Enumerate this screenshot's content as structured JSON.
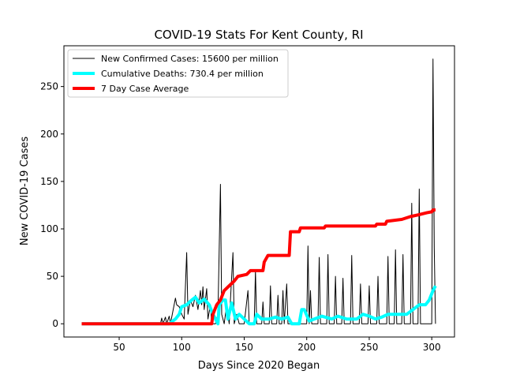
{
  "chart_data": {
    "type": "line",
    "title": "COVID-19 Stats For Kent County, RI",
    "x_label": "Days Since 2020 Began",
    "y_label": "New COVID-19 Cases",
    "xlim": [
      5.8,
      318.2
    ],
    "ylim": [
      -13.95,
      292.95
    ],
    "xticks": [
      50,
      100,
      150,
      200,
      250,
      300
    ],
    "yticks": [
      0,
      50,
      100,
      150,
      200,
      250
    ],
    "legend": "upper left",
    "series": [
      {
        "name": "New Confirmed Cases: 15600 per million",
        "color": "#000000",
        "width": 1,
        "x": [
          20,
          83,
          84,
          85,
          87,
          88,
          90,
          91,
          95,
          96,
          98,
          100,
          102,
          104,
          105,
          107,
          109,
          111,
          113,
          115,
          116,
          117,
          118,
          120,
          121,
          123,
          124,
          127,
          129,
          131,
          132,
          134,
          136,
          138,
          141,
          142,
          144,
          146,
          150,
          153,
          154,
          158,
          159,
          160,
          164,
          165,
          166,
          170,
          171,
          172,
          176,
          177,
          178,
          180,
          181,
          182,
          184,
          185,
          195,
          197,
          200,
          201,
          202,
          203,
          204,
          209,
          210,
          211,
          216,
          217,
          218,
          222,
          223,
          224,
          228,
          229,
          230,
          235,
          236,
          237,
          242,
          243,
          244,
          249,
          250,
          251,
          256,
          257,
          258,
          264,
          265,
          266,
          270,
          271,
          272,
          276,
          277,
          278,
          283,
          284,
          285,
          289,
          290,
          291,
          296,
          297,
          300,
          301,
          302,
          303
        ],
        "values": [
          0,
          0,
          6,
          0,
          7,
          0,
          8,
          0,
          27,
          20,
          18,
          10,
          5,
          75,
          10,
          25,
          18,
          30,
          15,
          35,
          20,
          39,
          15,
          37,
          5,
          20,
          0,
          0,
          10,
          147,
          10,
          0,
          20,
          0,
          75,
          0,
          10,
          0,
          0,
          35,
          0,
          0,
          56,
          0,
          0,
          23,
          0,
          0,
          40,
          0,
          0,
          30,
          0,
          0,
          35,
          0,
          42,
          0,
          0,
          0,
          0,
          82,
          0,
          35,
          0,
          0,
          70,
          0,
          0,
          73,
          0,
          0,
          50,
          0,
          0,
          48,
          0,
          0,
          72,
          0,
          0,
          42,
          0,
          0,
          40,
          0,
          0,
          50,
          0,
          0,
          71,
          0,
          0,
          78,
          0,
          0,
          73,
          0,
          0,
          127,
          0,
          0,
          142,
          0,
          0,
          0,
          0,
          279,
          80,
          0
        ]
      },
      {
        "name": "Cumulative Deaths: 730.4 per million",
        "color": "#00ffff",
        "width": 4,
        "x": [
          20,
          90,
          95,
          98,
          100,
          104,
          108,
          111,
          114,
          118,
          122,
          125,
          127,
          129,
          130,
          133,
          135,
          137,
          140,
          143,
          146,
          150,
          154,
          158,
          160,
          164,
          170,
          175,
          180,
          185,
          188,
          194,
          196,
          198,
          202,
          206,
          212,
          220,
          225,
          232,
          240,
          245,
          250,
          255,
          260,
          265,
          270,
          280,
          285,
          290,
          295,
          298,
          301,
          303
        ],
        "values": [
          0,
          0,
          5,
          10,
          18,
          20,
          25,
          28,
          22,
          26,
          20,
          10,
          5,
          0,
          20,
          25,
          25,
          5,
          22,
          5,
          10,
          5,
          0,
          0,
          10,
          5,
          5,
          7,
          5,
          7,
          0,
          0,
          15,
          15,
          3,
          5,
          8,
          5,
          8,
          5,
          5,
          10,
          8,
          5,
          7,
          10,
          10,
          10,
          15,
          20,
          20,
          25,
          35,
          40
        ]
      },
      {
        "name": "7 Day Case Average",
        "color": "#ff0000",
        "width": 4,
        "x": [
          20,
          124,
          125,
          128,
          131,
          134,
          138,
          142,
          145,
          152,
          155,
          165,
          166,
          169,
          186,
          187,
          194,
          195,
          214,
          215,
          255,
          256,
          263,
          264,
          276,
          283,
          290,
          296,
          300,
          301,
          303
        ],
        "values": [
          0,
          0,
          10,
          20,
          25,
          35,
          40,
          45,
          50,
          52,
          56,
          56,
          65,
          72,
          72,
          97,
          97,
          101,
          101,
          103,
          103,
          105,
          105,
          108,
          110,
          113,
          115,
          117,
          118,
          120,
          120
        ]
      }
    ]
  }
}
